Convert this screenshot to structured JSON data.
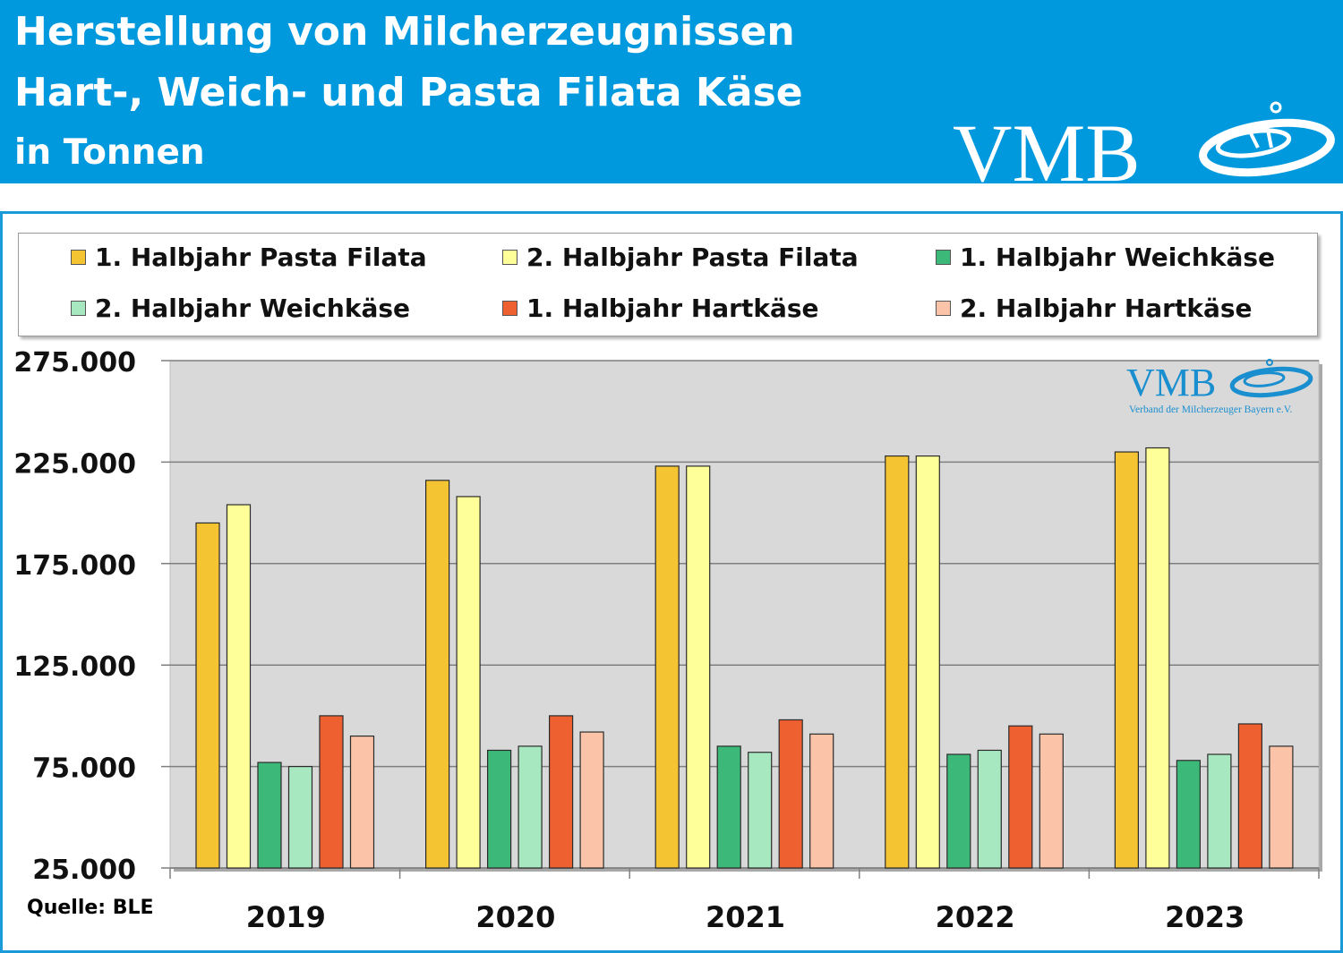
{
  "header": {
    "title_line1": "Herstellung von Milcherzeugnissen",
    "title_line2": "Hart-, Weich- und Pasta Filata Käse",
    "title_line3": "in Tonnen",
    "background_color": "#0099dd"
  },
  "logo": {
    "text": "VMB",
    "subtitle": "Verband der Milcherzeuger Bayern e.V."
  },
  "source": "Quelle: BLE",
  "chart_data": {
    "type": "bar",
    "categories": [
      "2019",
      "2020",
      "2021",
      "2022",
      "2023"
    ],
    "series": [
      {
        "name": "1. Halbjahr Pasta Filata",
        "color": "#f5c433",
        "values": [
          195000,
          216000,
          223000,
          228000,
          230000
        ]
      },
      {
        "name": "2. Halbjahr Pasta Filata",
        "color": "#ffff99",
        "values": [
          204000,
          208000,
          223000,
          228000,
          232000
        ]
      },
      {
        "name": "1. Halbjahr Weichkäse",
        "color": "#3cb878",
        "values": [
          77000,
          83000,
          85000,
          81000,
          78000
        ]
      },
      {
        "name": "2. Halbjahr Weichkäse",
        "color": "#a8e8c0",
        "values": [
          75000,
          85000,
          82000,
          83000,
          81000
        ]
      },
      {
        "name": "1. Halbjahr Hartkäse",
        "color": "#ef6030",
        "values": [
          100000,
          100000,
          98000,
          95000,
          96000
        ]
      },
      {
        "name": "2. Halbjahr Hartkäse",
        "color": "#fbc4a8",
        "values": [
          90000,
          92000,
          91000,
          91000,
          85000
        ]
      }
    ],
    "yticks": [
      "25.000",
      "75.000",
      "125.000",
      "175.000",
      "225.000",
      "275.000"
    ],
    "ylim": [
      25000,
      275000
    ],
    "grid": true,
    "legend_position": "top",
    "plot_background": "#d9d9d9"
  }
}
